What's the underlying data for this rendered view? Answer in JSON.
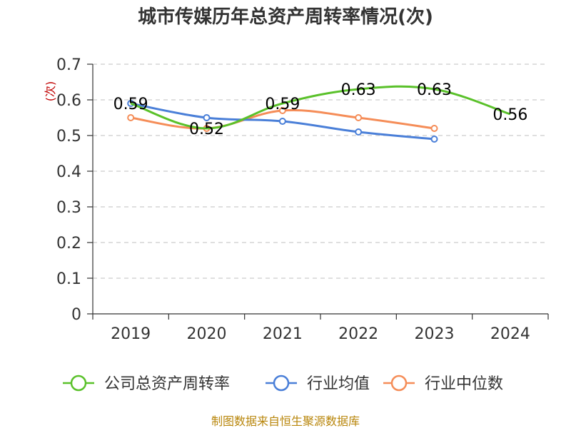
{
  "chart_data": {
    "type": "line",
    "title": "城市传媒历年总资产周转率情况(次)",
    "ylabel": "(次)",
    "xlabel": "",
    "categories": [
      "2019",
      "2020",
      "2021",
      "2022",
      "2023",
      "2024"
    ],
    "ylim": [
      0,
      0.7
    ],
    "yticks": [
      "0",
      "0.1",
      "0.2",
      "0.3",
      "0.4",
      "0.5",
      "0.6",
      "0.7"
    ],
    "grid": true,
    "legend_position": "bottom",
    "series": [
      {
        "name": "公司总资产周转率",
        "color": "#5ac12a",
        "values": [
          0.59,
          0.52,
          0.59,
          0.63,
          0.63,
          0.56
        ],
        "labels": [
          "0.59",
          "0.52",
          "0.59",
          "0.63",
          "0.63",
          "0.56"
        ]
      },
      {
        "name": "行业均值",
        "color": "#4a7fd8",
        "values": [
          0.59,
          0.55,
          0.54,
          0.51,
          0.49,
          null
        ]
      },
      {
        "name": "行业中位数",
        "color": "#f58d58",
        "values": [
          0.55,
          0.52,
          0.57,
          0.55,
          0.52,
          null
        ]
      }
    ]
  },
  "source": "制图数据来自恒生聚源数据库"
}
